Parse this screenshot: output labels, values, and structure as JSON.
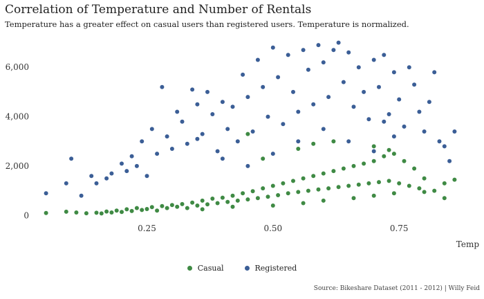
{
  "chart_data": {
    "type": "scatter",
    "title": "Correlation of Temperature and Number of Rentals",
    "subtitle": "Temperature has a greater effect on casual users than registered users. Temperature is normalized.",
    "xlabel": "Temp",
    "ylabel": "",
    "xlim": [
      0.03,
      0.88
    ],
    "ylim": [
      -300,
      7100
    ],
    "x_ticks": [
      0.25,
      0.5,
      0.75
    ],
    "x_tick_labels": [
      "0.25",
      "0.50",
      "0.75"
    ],
    "y_ticks": [
      0,
      2000,
      4000,
      6000
    ],
    "y_tick_labels": [
      "0",
      "2,000",
      "4,000",
      "6,000"
    ],
    "grid": false,
    "legend_position": "bottom",
    "caption": "Source: Bikeshare Dataset (2011 - 2012) | Willy Feid",
    "series": [
      {
        "name": "Casual",
        "color": "#3f8a44",
        "points": [
          [
            0.05,
            100
          ],
          [
            0.09,
            150
          ],
          [
            0.11,
            120
          ],
          [
            0.13,
            90
          ],
          [
            0.15,
            110
          ],
          [
            0.16,
            80
          ],
          [
            0.17,
            160
          ],
          [
            0.18,
            120
          ],
          [
            0.19,
            200
          ],
          [
            0.2,
            140
          ],
          [
            0.21,
            250
          ],
          [
            0.22,
            180
          ],
          [
            0.23,
            300
          ],
          [
            0.24,
            220
          ],
          [
            0.25,
            260
          ],
          [
            0.26,
            340
          ],
          [
            0.27,
            200
          ],
          [
            0.28,
            380
          ],
          [
            0.29,
            300
          ],
          [
            0.3,
            420
          ],
          [
            0.31,
            350
          ],
          [
            0.32,
            460
          ],
          [
            0.33,
            300
          ],
          [
            0.34,
            520
          ],
          [
            0.35,
            400
          ],
          [
            0.36,
            600
          ],
          [
            0.37,
            450
          ],
          [
            0.38,
            680
          ],
          [
            0.39,
            500
          ],
          [
            0.4,
            720
          ],
          [
            0.41,
            550
          ],
          [
            0.42,
            800
          ],
          [
            0.43,
            600
          ],
          [
            0.44,
            900
          ],
          [
            0.45,
            650
          ],
          [
            0.46,
            980
          ],
          [
            0.47,
            700
          ],
          [
            0.48,
            1100
          ],
          [
            0.49,
            760
          ],
          [
            0.5,
            1200
          ],
          [
            0.51,
            820
          ],
          [
            0.52,
            1300
          ],
          [
            0.53,
            900
          ],
          [
            0.54,
            1400
          ],
          [
            0.55,
            950
          ],
          [
            0.56,
            1500
          ],
          [
            0.57,
            1000
          ],
          [
            0.58,
            1600
          ],
          [
            0.59,
            1050
          ],
          [
            0.6,
            1700
          ],
          [
            0.61,
            1100
          ],
          [
            0.62,
            1800
          ],
          [
            0.63,
            1150
          ],
          [
            0.64,
            1900
          ],
          [
            0.65,
            1200
          ],
          [
            0.66,
            2000
          ],
          [
            0.67,
            1250
          ],
          [
            0.68,
            2100
          ],
          [
            0.69,
            1300
          ],
          [
            0.7,
            2200
          ],
          [
            0.71,
            1350
          ],
          [
            0.72,
            2400
          ],
          [
            0.73,
            1400
          ],
          [
            0.74,
            2500
          ],
          [
            0.75,
            1300
          ],
          [
            0.76,
            2200
          ],
          [
            0.77,
            1200
          ],
          [
            0.78,
            1900
          ],
          [
            0.79,
            1100
          ],
          [
            0.8,
            1500
          ],
          [
            0.82,
            1000
          ],
          [
            0.84,
            1300
          ],
          [
            0.86,
            1450
          ],
          [
            0.55,
            2700
          ],
          [
            0.58,
            2900
          ],
          [
            0.62,
            3000
          ],
          [
            0.7,
            2800
          ],
          [
            0.73,
            2650
          ],
          [
            0.48,
            2300
          ],
          [
            0.45,
            3300
          ],
          [
            0.36,
            250
          ],
          [
            0.42,
            350
          ],
          [
            0.5,
            400
          ],
          [
            0.56,
            500
          ],
          [
            0.6,
            600
          ],
          [
            0.66,
            700
          ],
          [
            0.7,
            800
          ],
          [
            0.74,
            900
          ],
          [
            0.8,
            950
          ],
          [
            0.84,
            700
          ]
        ]
      },
      {
        "name": "Registered",
        "color": "#3b5e96",
        "points": [
          [
            0.05,
            900
          ],
          [
            0.09,
            1300
          ],
          [
            0.1,
            2300
          ],
          [
            0.12,
            800
          ],
          [
            0.14,
            1600
          ],
          [
            0.15,
            1300
          ],
          [
            0.17,
            1500
          ],
          [
            0.18,
            1700
          ],
          [
            0.2,
            2100
          ],
          [
            0.21,
            1800
          ],
          [
            0.22,
            2400
          ],
          [
            0.23,
            2000
          ],
          [
            0.24,
            3000
          ],
          [
            0.25,
            1600
          ],
          [
            0.26,
            3500
          ],
          [
            0.27,
            2500
          ],
          [
            0.28,
            5200
          ],
          [
            0.29,
            3200
          ],
          [
            0.3,
            2700
          ],
          [
            0.31,
            4200
          ],
          [
            0.32,
            3800
          ],
          [
            0.33,
            2900
          ],
          [
            0.34,
            5100
          ],
          [
            0.35,
            4500
          ],
          [
            0.36,
            3300
          ],
          [
            0.37,
            5000
          ],
          [
            0.38,
            4100
          ],
          [
            0.39,
            2600
          ],
          [
            0.4,
            4600
          ],
          [
            0.41,
            3500
          ],
          [
            0.42,
            4400
          ],
          [
            0.43,
            3000
          ],
          [
            0.44,
            5700
          ],
          [
            0.45,
            4800
          ],
          [
            0.46,
            3400
          ],
          [
            0.47,
            6300
          ],
          [
            0.48,
            5200
          ],
          [
            0.49,
            4000
          ],
          [
            0.5,
            6800
          ],
          [
            0.51,
            5600
          ],
          [
            0.52,
            3700
          ],
          [
            0.53,
            6500
          ],
          [
            0.54,
            5000
          ],
          [
            0.55,
            4200
          ],
          [
            0.56,
            6700
          ],
          [
            0.57,
            5900
          ],
          [
            0.58,
            4500
          ],
          [
            0.59,
            6900
          ],
          [
            0.6,
            6200
          ],
          [
            0.61,
            4800
          ],
          [
            0.62,
            6700
          ],
          [
            0.63,
            7000
          ],
          [
            0.64,
            5400
          ],
          [
            0.65,
            6600
          ],
          [
            0.66,
            4400
          ],
          [
            0.67,
            6000
          ],
          [
            0.68,
            5000
          ],
          [
            0.69,
            3900
          ],
          [
            0.7,
            6300
          ],
          [
            0.71,
            5200
          ],
          [
            0.72,
            6500
          ],
          [
            0.73,
            4100
          ],
          [
            0.74,
            5800
          ],
          [
            0.75,
            4700
          ],
          [
            0.76,
            3600
          ],
          [
            0.77,
            6000
          ],
          [
            0.78,
            5300
          ],
          [
            0.79,
            4200
          ],
          [
            0.8,
            3400
          ],
          [
            0.81,
            4600
          ],
          [
            0.82,
            5800
          ],
          [
            0.83,
            3000
          ],
          [
            0.85,
            2200
          ],
          [
            0.86,
            3400
          ],
          [
            0.84,
            2800
          ],
          [
            0.35,
            3100
          ],
          [
            0.4,
            2300
          ],
          [
            0.45,
            2000
          ],
          [
            0.5,
            2500
          ],
          [
            0.55,
            3000
          ],
          [
            0.6,
            3500
          ],
          [
            0.65,
            3000
          ],
          [
            0.7,
            2600
          ],
          [
            0.72,
            3800
          ],
          [
            0.74,
            3200
          ]
        ]
      }
    ]
  }
}
